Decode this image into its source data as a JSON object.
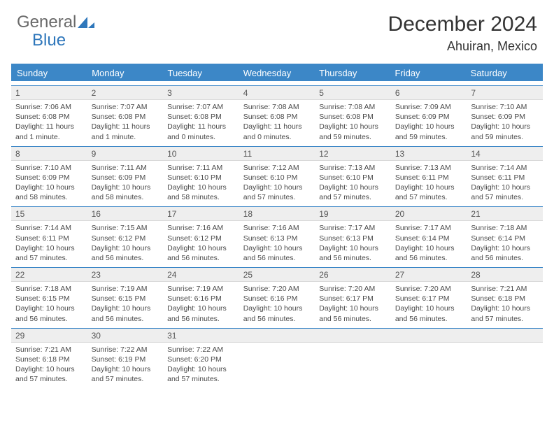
{
  "logo": {
    "text1": "General",
    "text2": "Blue"
  },
  "title": "December 2024",
  "location": "Ahuiran, Mexico",
  "weekdays": [
    "Sunday",
    "Monday",
    "Tuesday",
    "Wednesday",
    "Thursday",
    "Friday",
    "Saturday"
  ],
  "colors": {
    "header_bar": "#3c87c7",
    "daynum_bg": "#eeeeee",
    "text_dark": "#333333",
    "text_body": "#4a4a4a",
    "logo_gray": "#6a6a6a",
    "logo_blue": "#2f77bb"
  },
  "weeks": [
    [
      {
        "n": "1",
        "sunrise": "Sunrise: 7:06 AM",
        "sunset": "Sunset: 6:08 PM",
        "daylight": "Daylight: 11 hours and 1 minute."
      },
      {
        "n": "2",
        "sunrise": "Sunrise: 7:07 AM",
        "sunset": "Sunset: 6:08 PM",
        "daylight": "Daylight: 11 hours and 1 minute."
      },
      {
        "n": "3",
        "sunrise": "Sunrise: 7:07 AM",
        "sunset": "Sunset: 6:08 PM",
        "daylight": "Daylight: 11 hours and 0 minutes."
      },
      {
        "n": "4",
        "sunrise": "Sunrise: 7:08 AM",
        "sunset": "Sunset: 6:08 PM",
        "daylight": "Daylight: 11 hours and 0 minutes."
      },
      {
        "n": "5",
        "sunrise": "Sunrise: 7:08 AM",
        "sunset": "Sunset: 6:08 PM",
        "daylight": "Daylight: 10 hours and 59 minutes."
      },
      {
        "n": "6",
        "sunrise": "Sunrise: 7:09 AM",
        "sunset": "Sunset: 6:09 PM",
        "daylight": "Daylight: 10 hours and 59 minutes."
      },
      {
        "n": "7",
        "sunrise": "Sunrise: 7:10 AM",
        "sunset": "Sunset: 6:09 PM",
        "daylight": "Daylight: 10 hours and 59 minutes."
      }
    ],
    [
      {
        "n": "8",
        "sunrise": "Sunrise: 7:10 AM",
        "sunset": "Sunset: 6:09 PM",
        "daylight": "Daylight: 10 hours and 58 minutes."
      },
      {
        "n": "9",
        "sunrise": "Sunrise: 7:11 AM",
        "sunset": "Sunset: 6:09 PM",
        "daylight": "Daylight: 10 hours and 58 minutes."
      },
      {
        "n": "10",
        "sunrise": "Sunrise: 7:11 AM",
        "sunset": "Sunset: 6:10 PM",
        "daylight": "Daylight: 10 hours and 58 minutes."
      },
      {
        "n": "11",
        "sunrise": "Sunrise: 7:12 AM",
        "sunset": "Sunset: 6:10 PM",
        "daylight": "Daylight: 10 hours and 57 minutes."
      },
      {
        "n": "12",
        "sunrise": "Sunrise: 7:13 AM",
        "sunset": "Sunset: 6:10 PM",
        "daylight": "Daylight: 10 hours and 57 minutes."
      },
      {
        "n": "13",
        "sunrise": "Sunrise: 7:13 AM",
        "sunset": "Sunset: 6:11 PM",
        "daylight": "Daylight: 10 hours and 57 minutes."
      },
      {
        "n": "14",
        "sunrise": "Sunrise: 7:14 AM",
        "sunset": "Sunset: 6:11 PM",
        "daylight": "Daylight: 10 hours and 57 minutes."
      }
    ],
    [
      {
        "n": "15",
        "sunrise": "Sunrise: 7:14 AM",
        "sunset": "Sunset: 6:11 PM",
        "daylight": "Daylight: 10 hours and 57 minutes."
      },
      {
        "n": "16",
        "sunrise": "Sunrise: 7:15 AM",
        "sunset": "Sunset: 6:12 PM",
        "daylight": "Daylight: 10 hours and 56 minutes."
      },
      {
        "n": "17",
        "sunrise": "Sunrise: 7:16 AM",
        "sunset": "Sunset: 6:12 PM",
        "daylight": "Daylight: 10 hours and 56 minutes."
      },
      {
        "n": "18",
        "sunrise": "Sunrise: 7:16 AM",
        "sunset": "Sunset: 6:13 PM",
        "daylight": "Daylight: 10 hours and 56 minutes."
      },
      {
        "n": "19",
        "sunrise": "Sunrise: 7:17 AM",
        "sunset": "Sunset: 6:13 PM",
        "daylight": "Daylight: 10 hours and 56 minutes."
      },
      {
        "n": "20",
        "sunrise": "Sunrise: 7:17 AM",
        "sunset": "Sunset: 6:14 PM",
        "daylight": "Daylight: 10 hours and 56 minutes."
      },
      {
        "n": "21",
        "sunrise": "Sunrise: 7:18 AM",
        "sunset": "Sunset: 6:14 PM",
        "daylight": "Daylight: 10 hours and 56 minutes."
      }
    ],
    [
      {
        "n": "22",
        "sunrise": "Sunrise: 7:18 AM",
        "sunset": "Sunset: 6:15 PM",
        "daylight": "Daylight: 10 hours and 56 minutes."
      },
      {
        "n": "23",
        "sunrise": "Sunrise: 7:19 AM",
        "sunset": "Sunset: 6:15 PM",
        "daylight": "Daylight: 10 hours and 56 minutes."
      },
      {
        "n": "24",
        "sunrise": "Sunrise: 7:19 AM",
        "sunset": "Sunset: 6:16 PM",
        "daylight": "Daylight: 10 hours and 56 minutes."
      },
      {
        "n": "25",
        "sunrise": "Sunrise: 7:20 AM",
        "sunset": "Sunset: 6:16 PM",
        "daylight": "Daylight: 10 hours and 56 minutes."
      },
      {
        "n": "26",
        "sunrise": "Sunrise: 7:20 AM",
        "sunset": "Sunset: 6:17 PM",
        "daylight": "Daylight: 10 hours and 56 minutes."
      },
      {
        "n": "27",
        "sunrise": "Sunrise: 7:20 AM",
        "sunset": "Sunset: 6:17 PM",
        "daylight": "Daylight: 10 hours and 56 minutes."
      },
      {
        "n": "28",
        "sunrise": "Sunrise: 7:21 AM",
        "sunset": "Sunset: 6:18 PM",
        "daylight": "Daylight: 10 hours and 57 minutes."
      }
    ],
    [
      {
        "n": "29",
        "sunrise": "Sunrise: 7:21 AM",
        "sunset": "Sunset: 6:18 PM",
        "daylight": "Daylight: 10 hours and 57 minutes."
      },
      {
        "n": "30",
        "sunrise": "Sunrise: 7:22 AM",
        "sunset": "Sunset: 6:19 PM",
        "daylight": "Daylight: 10 hours and 57 minutes."
      },
      {
        "n": "31",
        "sunrise": "Sunrise: 7:22 AM",
        "sunset": "Sunset: 6:20 PM",
        "daylight": "Daylight: 10 hours and 57 minutes."
      },
      null,
      null,
      null,
      null
    ]
  ]
}
